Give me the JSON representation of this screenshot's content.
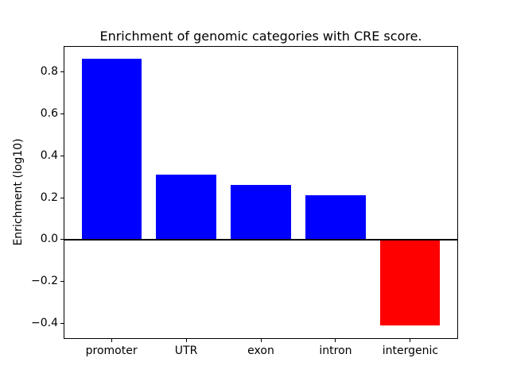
{
  "title": "Enrichment of genomic categories with CRE score.",
  "colors": {
    "positive_bar": "#0000ff",
    "negative_bar": "#ff0000",
    "axis": "#000000",
    "background": "#ffffff"
  },
  "chart_data": {
    "type": "bar",
    "title": "Enrichment of genomic categories with CRE score.",
    "xlabel": "",
    "ylabel": "Enrichment (log10)",
    "categories": [
      "promoter",
      "UTR",
      "exon",
      "intron",
      "intergenic"
    ],
    "values": [
      0.86,
      0.31,
      0.26,
      0.21,
      -0.41
    ],
    "bar_colors": [
      "#0000ff",
      "#0000ff",
      "#0000ff",
      "#0000ff",
      "#ff0000"
    ],
    "bar_width": 0.8,
    "ylim": [
      -0.4735,
      0.9235
    ],
    "xlim": [
      -0.64,
      4.64
    ],
    "yticks": [
      0.8,
      0.6,
      0.4,
      0.2,
      0.0,
      -0.2,
      -0.4
    ],
    "ytick_labels": [
      "0.8",
      "0.6",
      "0.4",
      "0.2",
      "0.0",
      "−0.2",
      "−0.4"
    ],
    "zero_line": true,
    "grid": false,
    "legend": null
  }
}
